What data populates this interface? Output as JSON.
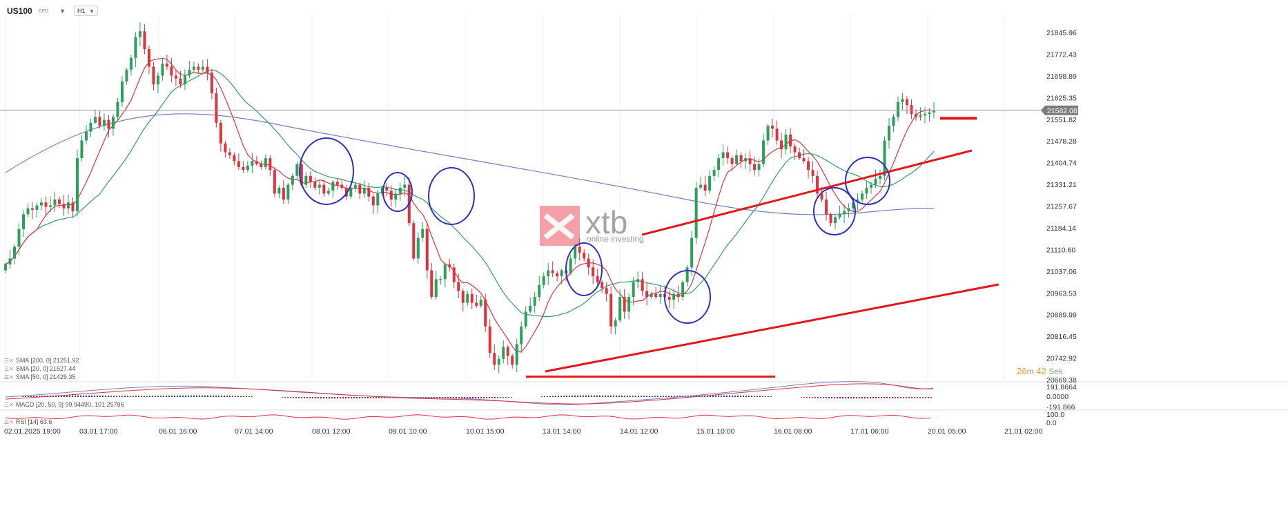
{
  "header": {
    "symbol": "US100",
    "instrument_type": "CFD",
    "timeframe": "H1"
  },
  "price_axis_labels": [
    "21845.96",
    "21772.43",
    "21698.89",
    "21625.35",
    "21551.82",
    "21478.28",
    "21404.74",
    "21331.21",
    "21257.67",
    "21184.14",
    "21110.60",
    "21037.06",
    "20963.53",
    "20889.99",
    "20816.45",
    "20742.92",
    "20669.38"
  ],
  "current_price": "21582.08",
  "time_axis_labels": [
    "02.01.2025  19:00",
    "03.01  17:00",
    "06.01  16:00",
    "07.01  14:00",
    "08.01  12:00",
    "09.01  10:00",
    "10.01  15:00",
    "13.01  14:00",
    "14.01  12:00",
    "15.01  10:00",
    "16.01  08:00",
    "17.01  06:00",
    "20.01  05:00",
    "21.01  02:00"
  ],
  "legends": {
    "sma200": "SMA [200,  0]  21251.92",
    "sma20": "SMA [20,  0]  21527.44",
    "sma50": "SMA [50,  0]  21429.35",
    "macd": "MACD [20,  50,  9]  99.94490,   101.25786",
    "rsi": "RSI [14]  63.6"
  },
  "macd_axis_labels": [
    "191.8664",
    "0.0000",
    "-191.866"
  ],
  "rsi_axis_labels": [
    "100.0",
    "0.0"
  ],
  "countdown": {
    "minutes": "26",
    "m_label": "m",
    "seconds": "42",
    "s_label": "Sek"
  },
  "watermark": {
    "brand": "xtb",
    "tagline": "online investing"
  },
  "colors": {
    "bull": "#2aa05a",
    "bear": "#e0323c",
    "sma20": "#e0323c",
    "sma50": "#2e9e6e",
    "sma200": "#7080c8",
    "annotation_red": "#e4161b",
    "annotation_blue": "#2b2fc4",
    "price_line": "#9a9a9a"
  },
  "chart_data": {
    "type": "candlestick",
    "instrument": "US100",
    "timeframe": "H1",
    "ylim": [
      20669.38,
      21880
    ],
    "x_labels": [
      "02.01.2025 19:00",
      "03.01 17:00",
      "06.01 16:00",
      "07.01 14:00",
      "08.01 12:00",
      "09.01 10:00",
      "10.01 15:00",
      "13.01 14:00",
      "14.01 12:00",
      "15.01 10:00",
      "16.01 08:00",
      "17.01 06:00",
      "20.01 05:00",
      "21.01 02:00"
    ],
    "close_path": [
      [
        0,
        21060
      ],
      [
        1,
        21080
      ],
      [
        2,
        21120
      ],
      [
        3,
        21180
      ],
      [
        4,
        21230
      ],
      [
        5,
        21250
      ],
      [
        6,
        21245
      ],
      [
        7,
        21260
      ],
      [
        8,
        21270
      ],
      [
        9,
        21255
      ],
      [
        10,
        21260
      ],
      [
        11,
        21280
      ],
      [
        12,
        21265
      ],
      [
        13,
        21250
      ],
      [
        14,
        21270
      ],
      [
        15,
        21240
      ],
      [
        16,
        21420
      ],
      [
        17,
        21480
      ],
      [
        18,
        21510
      ],
      [
        19,
        21540
      ],
      [
        20,
        21560
      ],
      [
        21,
        21530
      ],
      [
        22,
        21550
      ],
      [
        23,
        21520
      ],
      [
        24,
        21560
      ],
      [
        25,
        21610
      ],
      [
        26,
        21680
      ],
      [
        27,
        21720
      ],
      [
        28,
        21760
      ],
      [
        29,
        21830
      ],
      [
        30,
        21850
      ],
      [
        31,
        21790
      ],
      [
        32,
        21730
      ],
      [
        33,
        21670
      ],
      [
        34,
        21700
      ],
      [
        35,
        21740
      ],
      [
        36,
        21730
      ],
      [
        37,
        21700
      ],
      [
        38,
        21690
      ],
      [
        39,
        21670
      ],
      [
        40,
        21700
      ],
      [
        41,
        21720
      ],
      [
        42,
        21730
      ],
      [
        43,
        21720
      ],
      [
        44,
        21730
      ],
      [
        45,
        21710
      ],
      [
        46,
        21640
      ],
      [
        47,
        21540
      ],
      [
        48,
        21470
      ],
      [
        49,
        21440
      ],
      [
        50,
        21430
      ],
      [
        51,
        21410
      ],
      [
        52,
        21390
      ],
      [
        53,
        21380
      ],
      [
        54,
        21395
      ],
      [
        55,
        21410
      ],
      [
        56,
        21400
      ],
      [
        57,
        21390
      ],
      [
        58,
        21420
      ],
      [
        59,
        21380
      ],
      [
        60,
        21300
      ],
      [
        61,
        21320
      ],
      [
        62,
        21280
      ],
      [
        63,
        21330
      ],
      [
        64,
        21360
      ],
      [
        65,
        21400
      ],
      [
        66,
        21330
      ],
      [
        67,
        21360
      ],
      [
        68,
        21340
      ],
      [
        69,
        21320
      ],
      [
        70,
        21330
      ],
      [
        71,
        21300
      ],
      [
        72,
        21310
      ],
      [
        73,
        21340
      ],
      [
        74,
        21330
      ],
      [
        75,
        21320
      ],
      [
        76,
        21290
      ],
      [
        77,
        21320
      ],
      [
        78,
        21330
      ],
      [
        79,
        21300
      ],
      [
        80,
        21320
      ],
      [
        81,
        21290
      ],
      [
        82,
        21260
      ],
      [
        83,
        21300
      ],
      [
        84,
        21320
      ],
      [
        85,
        21310
      ],
      [
        86,
        21280
      ],
      [
        87,
        21300
      ],
      [
        88,
        21320
      ],
      [
        89,
        21330
      ],
      [
        90,
        21200
      ],
      [
        91,
        21080
      ],
      [
        92,
        21150
      ],
      [
        93,
        21180
      ],
      [
        94,
        21040
      ],
      [
        95,
        20950
      ],
      [
        96,
        21010
      ],
      [
        97,
        21010
      ],
      [
        98,
        21060
      ],
      [
        99,
        21050
      ],
      [
        100,
        21000
      ],
      [
        101,
        20970
      ],
      [
        102,
        20930
      ],
      [
        103,
        20960
      ],
      [
        104,
        20930
      ],
      [
        105,
        20920
      ],
      [
        106,
        20940
      ],
      [
        107,
        20850
      ],
      [
        108,
        20760
      ],
      [
        109,
        20720
      ],
      [
        110,
        20740
      ],
      [
        111,
        20780
      ],
      [
        112,
        20750
      ],
      [
        113,
        20720
      ],
      [
        114,
        20790
      ],
      [
        115,
        20850
      ],
      [
        116,
        20900
      ],
      [
        117,
        20920
      ],
      [
        118,
        20950
      ],
      [
        119,
        20990
      ],
      [
        120,
        21020
      ],
      [
        121,
        21040
      ],
      [
        122,
        21030
      ],
      [
        123,
        21020
      ],
      [
        124,
        21040
      ],
      [
        125,
        21030
      ],
      [
        126,
        21080
      ],
      [
        127,
        21120
      ],
      [
        128,
        21100
      ],
      [
        129,
        21080
      ],
      [
        130,
        21050
      ],
      [
        131,
        21020
      ],
      [
        132,
        21000
      ],
      [
        133,
        20980
      ],
      [
        134,
        20960
      ],
      [
        135,
        20850
      ],
      [
        136,
        20870
      ],
      [
        137,
        20950
      ],
      [
        138,
        20900
      ],
      [
        139,
        20950
      ],
      [
        140,
        21000
      ],
      [
        141,
        21010
      ],
      [
        142,
        20970
      ],
      [
        143,
        20950
      ],
      [
        144,
        20960
      ],
      [
        145,
        20950
      ],
      [
        146,
        20960
      ],
      [
        147,
        20950
      ],
      [
        148,
        20940
      ],
      [
        149,
        20960
      ],
      [
        150,
        20950
      ],
      [
        151,
        21000
      ],
      [
        152,
        21050
      ],
      [
        153,
        21150
      ],
      [
        154,
        21320
      ],
      [
        155,
        21330
      ],
      [
        156,
        21310
      ],
      [
        157,
        21360
      ],
      [
        158,
        21380
      ],
      [
        159,
        21420
      ],
      [
        160,
        21440
      ],
      [
        161,
        21420
      ],
      [
        162,
        21400
      ],
      [
        163,
        21430
      ],
      [
        164,
        21410
      ],
      [
        165,
        21420
      ],
      [
        166,
        21400
      ],
      [
        167,
        21380
      ],
      [
        168,
        21400
      ],
      [
        169,
        21480
      ],
      [
        170,
        21530
      ],
      [
        171,
        21520
      ],
      [
        172,
        21480
      ],
      [
        173,
        21450
      ],
      [
        174,
        21500
      ],
      [
        175,
        21460
      ],
      [
        176,
        21440
      ],
      [
        177,
        21420
      ],
      [
        178,
        21410
      ],
      [
        179,
        21380
      ],
      [
        180,
        21360
      ],
      [
        181,
        21300
      ],
      [
        182,
        21280
      ],
      [
        183,
        21230
      ],
      [
        184,
        21200
      ],
      [
        185,
        21220
      ],
      [
        186,
        21230
      ],
      [
        187,
        21240
      ],
      [
        188,
        21250
      ],
      [
        189,
        21270
      ],
      [
        190,
        21280
      ],
      [
        191,
        21300
      ],
      [
        192,
        21320
      ],
      [
        193,
        21330
      ],
      [
        194,
        21350
      ],
      [
        195,
        21360
      ],
      [
        196,
        21480
      ],
      [
        197,
        21530
      ],
      [
        198,
        21560
      ],
      [
        199,
        21610
      ],
      [
        200,
        21620
      ],
      [
        201,
        21600
      ],
      [
        202,
        21570
      ],
      [
        203,
        21560
      ],
      [
        204,
        21565
      ],
      [
        205,
        21570
      ],
      [
        206,
        21575
      ],
      [
        207,
        21582
      ]
    ],
    "series": [
      {
        "name": "SMA [200, 0]",
        "last": 21251.92
      },
      {
        "name": "SMA [20, 0]",
        "last": 21527.44
      },
      {
        "name": "SMA [50, 0]",
        "last": 21429.35
      }
    ],
    "macd": {
      "name": "MACD [20, 50, 9]",
      "values": [
        99.9449,
        101.25786
      ],
      "range": [
        -191.866,
        191.8664
      ]
    },
    "rsi": {
      "name": "RSI [14]",
      "value": 63.6,
      "range": [
        0,
        100
      ]
    },
    "current_price": 21582.08,
    "horizontal_levels": [
      20680,
      21555
    ],
    "trendlines": [
      {
        "from": [
          110,
          20740
        ],
        "to": [
          200,
          21037
        ]
      },
      {
        "from": [
          130,
          21170
        ],
        "to": [
          195,
          21460
        ]
      }
    ]
  }
}
